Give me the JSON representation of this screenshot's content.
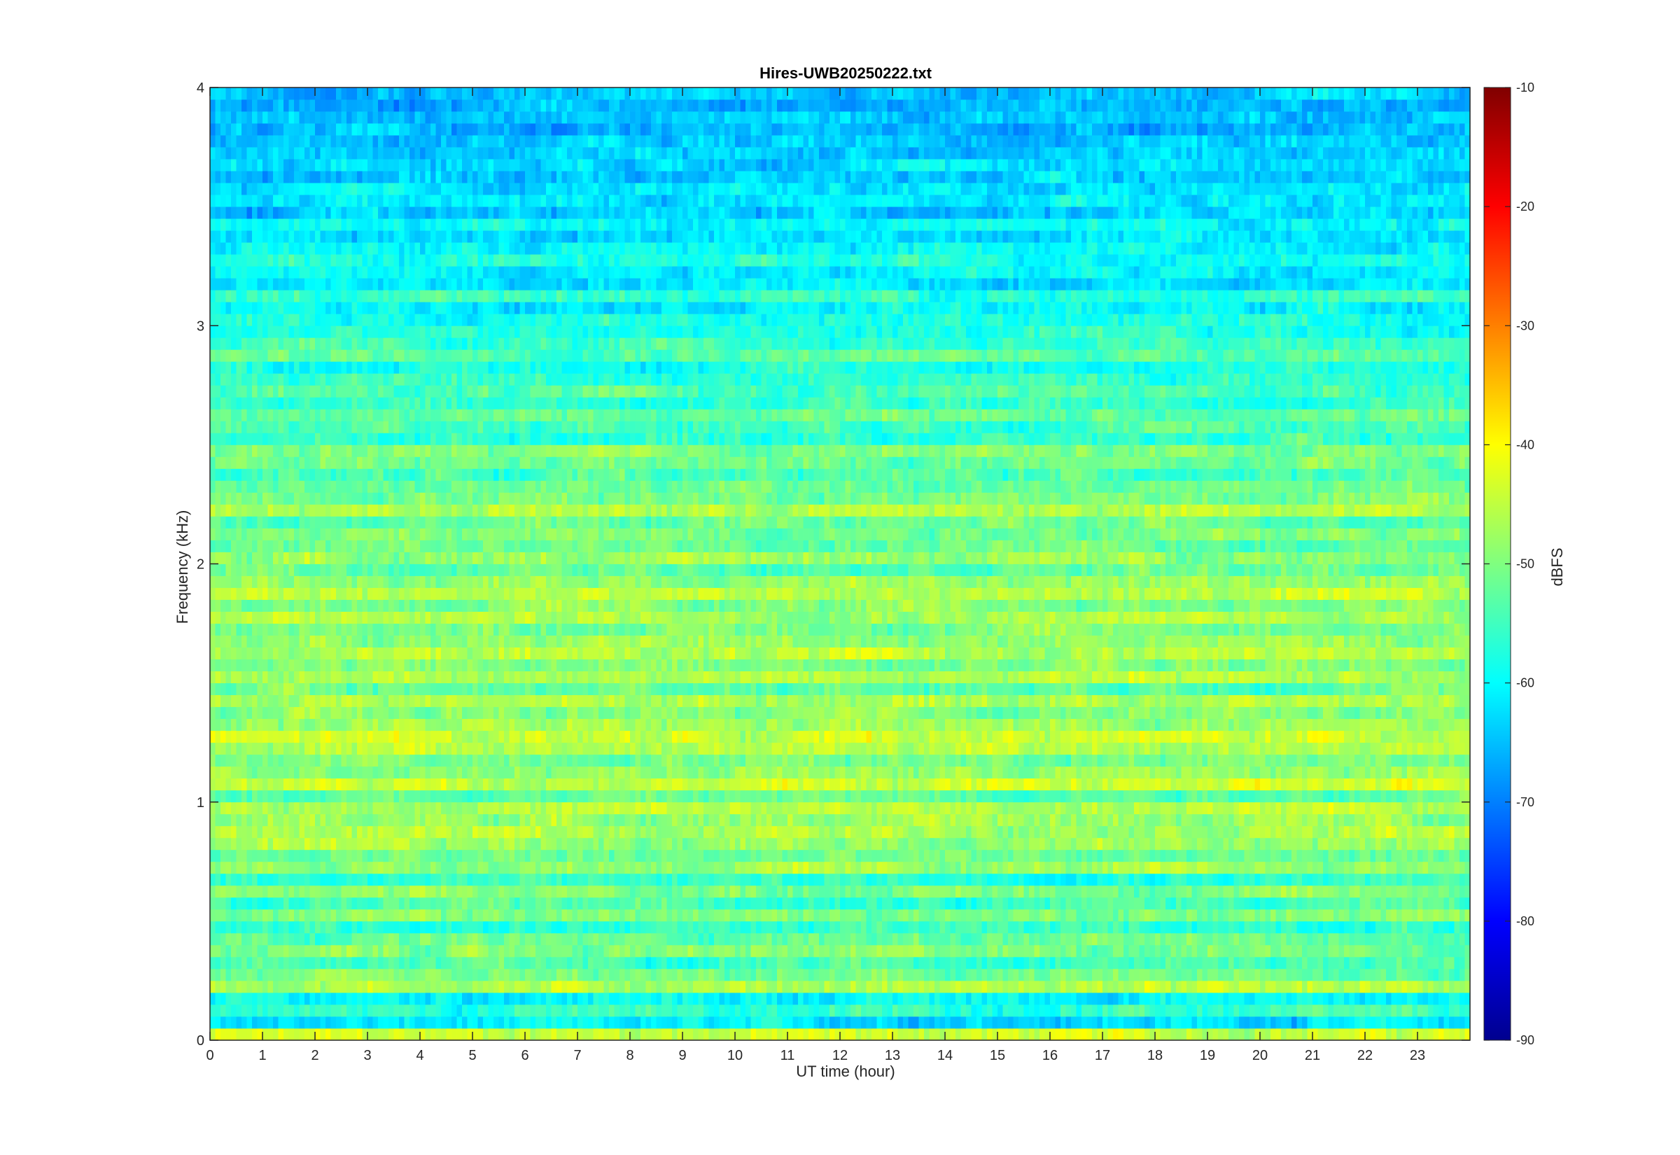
{
  "chart_data": {
    "type": "heatmap",
    "title": "Hires-UWB20250222.txt",
    "xlabel": "UT time (hour)",
    "ylabel": "Frequency (kHz)",
    "colorbar_label": "dBFS",
    "colormap": "jet",
    "xlim": [
      0,
      24
    ],
    "ylim": [
      0,
      4
    ],
    "clim": [
      -90,
      -10
    ],
    "x_ticks": [
      "0",
      "1",
      "2",
      "3",
      "4",
      "5",
      "6",
      "7",
      "8",
      "9",
      "10",
      "11",
      "12",
      "13",
      "14",
      "15",
      "16",
      "17",
      "18",
      "19",
      "20",
      "21",
      "22",
      "23"
    ],
    "y_ticks": [
      "0",
      "1",
      "2",
      "3",
      "4"
    ],
    "colorbar_ticks": [
      "-10",
      "-20",
      "-30",
      "-40",
      "-50",
      "-60",
      "-70",
      "-80",
      "-90"
    ],
    "grid": false,
    "frequency_bands_khz": [
      0.0,
      0.05,
      0.1,
      0.15,
      0.2,
      0.25,
      0.3,
      0.35,
      0.4,
      0.45,
      0.5,
      0.55,
      0.6,
      0.65,
      0.7,
      0.75,
      0.8,
      0.85,
      0.9,
      0.95,
      1.0,
      1.05,
      1.1,
      1.15,
      1.2,
      1.25,
      1.3,
      1.35,
      1.4,
      1.45,
      1.5,
      1.55,
      1.6,
      1.65,
      1.7,
      1.75,
      1.8,
      1.85,
      1.9,
      1.95,
      2.0,
      2.05,
      2.1,
      2.15,
      2.2,
      2.25,
      2.3,
      2.35,
      2.4,
      2.45,
      2.5,
      2.55,
      2.6,
      2.65,
      2.7,
      2.75,
      2.8,
      2.85,
      2.9,
      2.95,
      3.0,
      3.05,
      3.1,
      3.15,
      3.2,
      3.25,
      3.3,
      3.35,
      3.4,
      3.45,
      3.5,
      3.55,
      3.6,
      3.65,
      3.7,
      3.75,
      3.8,
      3.85,
      3.9,
      3.95
    ],
    "band_mean_dbfs": [
      -44,
      -62,
      -56,
      -60,
      -46,
      -52,
      -54,
      -50,
      -52,
      -56,
      -50,
      -54,
      -50,
      -56,
      -48,
      -52,
      -48,
      -46,
      -48,
      -46,
      -52,
      -44,
      -48,
      -50,
      -46,
      -44,
      -48,
      -50,
      -46,
      -52,
      -46,
      -50,
      -46,
      -48,
      -50,
      -46,
      -50,
      -46,
      -48,
      -52,
      -48,
      -52,
      -50,
      -52,
      -46,
      -50,
      -52,
      -54,
      -52,
      -50,
      -56,
      -54,
      -52,
      -56,
      -54,
      -56,
      -58,
      -52,
      -56,
      -58,
      -58,
      -60,
      -56,
      -62,
      -60,
      -58,
      -60,
      -62,
      -60,
      -64,
      -62,
      -62,
      -64,
      -62,
      -64,
      -64,
      -66,
      -64,
      -66,
      -64
    ]
  }
}
